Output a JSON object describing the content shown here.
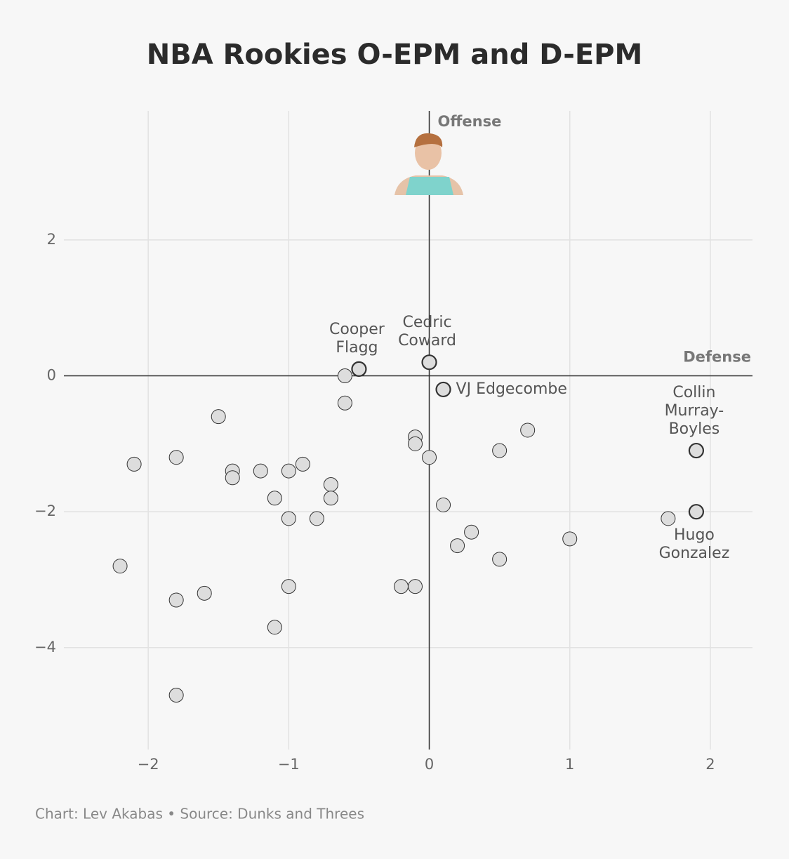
{
  "chart_data": {
    "type": "scatter",
    "title": "NBA Rookies O-EPM and D-EPM",
    "x_label": "Defense",
    "y_label": "Offense",
    "footer": "Chart: Lev Akabas • Source: Dunks and Threes",
    "xlim": [
      -2.6,
      2.3
    ],
    "ylim": [
      -5.5,
      3.9
    ],
    "xticks": [
      {
        "value": -2,
        "label": "−2"
      },
      {
        "value": -1,
        "label": "−1"
      },
      0,
      1,
      2
    ],
    "yticks": [
      {
        "value": -4,
        "label": "−4"
      },
      {
        "value": -2,
        "label": "−2"
      },
      0,
      2
    ],
    "grid": true,
    "color": "#dddddd",
    "x": [
      -0.5,
      0,
      0.1,
      1.9,
      1.9,
      -0.6,
      -0.6,
      -1.5,
      -2.1,
      -1.8,
      -1.4,
      -1.4,
      -1.2,
      -1.0,
      -0.9,
      -0.7,
      -0.7,
      -1.1,
      -1.0,
      -0.8,
      -2.2,
      -1.8,
      -1.6,
      -1.0,
      -1.1,
      -1.8,
      -0.1,
      -0.1,
      0,
      0.1,
      0.2,
      0.3,
      0.5,
      0.7,
      0.5,
      1.0,
      -0.2,
      -0.1,
      1.7
    ],
    "y": [
      0.1,
      0.2,
      -0.2,
      -1.1,
      -2.0,
      0.0,
      -0.4,
      -0.6,
      -1.3,
      -1.2,
      -1.4,
      -1.5,
      -1.4,
      -1.4,
      -1.3,
      -1.6,
      -1.8,
      -1.8,
      -2.1,
      -2.1,
      -2.8,
      -3.3,
      -3.2,
      -3.1,
      -3.7,
      -4.7,
      -0.9,
      -1.0,
      -1.2,
      -1.9,
      -2.5,
      -2.3,
      -1.1,
      -0.8,
      -2.7,
      -2.4,
      -3.1,
      -3.1,
      -2.1
    ],
    "labels": [
      [
        "Cooper",
        "Flagg"
      ],
      [
        "Cedric",
        "Coward"
      ],
      [
        "VJ Edgecombe"
      ],
      [
        "Collin",
        "Murray-",
        "Boyles"
      ],
      [
        "Hugo",
        "Gonzalez"
      ],
      null,
      null,
      null,
      null,
      null,
      null,
      null,
      null,
      null,
      null,
      null,
      null,
      null,
      null,
      null,
      null,
      null,
      null,
      null,
      null,
      null,
      null,
      null,
      null,
      null,
      null,
      null,
      null,
      null,
      null,
      null,
      null,
      null,
      null
    ]
  }
}
